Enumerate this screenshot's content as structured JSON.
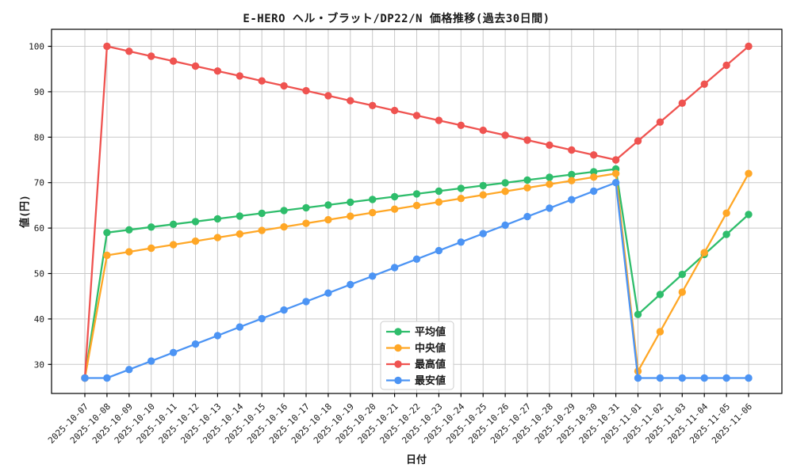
{
  "figure": {
    "title": "E-HERO ヘル・ブラット/DP22/N 価格推移(過去30日間)",
    "xlabel": "日付",
    "ylabel": "値(円)"
  },
  "colors": {
    "background": "#ffffff",
    "grid": "#c8c8c8",
    "axes_edge": "#000000",
    "text": "#1a1a1a",
    "avg_green": "#2ebd6b",
    "median_orange": "#ffa726",
    "max_red": "#ef5350",
    "min_blue": "#4c94f4"
  },
  "chart_data": {
    "type": "line",
    "title": "E-HERO ヘル・ブラット/DP22/N 価格推移(過去30日間)",
    "xlabel": "日付",
    "ylabel": "値(円)",
    "grid": true,
    "yticks": [
      30,
      40,
      50,
      60,
      70,
      80,
      90,
      100
    ],
    "ylim": [
      23.6,
      103.8
    ],
    "xtick_rotation": -45,
    "legend_position": "lower-center",
    "x": [
      "2025-10-07",
      "2025-10-08",
      "2025-10-09",
      "2025-10-10",
      "2025-10-11",
      "2025-10-12",
      "2025-10-13",
      "2025-10-14",
      "2025-10-15",
      "2025-10-16",
      "2025-10-17",
      "2025-10-18",
      "2025-10-19",
      "2025-10-20",
      "2025-10-21",
      "2025-10-22",
      "2025-10-23",
      "2025-10-24",
      "2025-10-25",
      "2025-10-26",
      "2025-10-27",
      "2025-10-28",
      "2025-10-29",
      "2025-10-30",
      "2025-10-31",
      "2025-11-01",
      "2025-11-02",
      "2025-11-03",
      "2025-11-04",
      "2025-11-05",
      "2025-11-06"
    ],
    "series": [
      {
        "name": "平均値",
        "key": "avg",
        "color": "#2ebd6b",
        "values": [
          27,
          59,
          59.61,
          60.22,
          60.83,
          61.43,
          62.04,
          62.65,
          63.26,
          63.87,
          64.48,
          65.09,
          65.7,
          66.3,
          66.91,
          67.52,
          68.13,
          68.74,
          69.35,
          69.96,
          70.57,
          71.17,
          71.78,
          72.39,
          73,
          41,
          45.4,
          49.8,
          54.2,
          58.6,
          63
        ]
      },
      {
        "name": "中央値",
        "key": "median",
        "color": "#ffa726",
        "values": [
          27,
          54,
          54.78,
          55.57,
          56.35,
          57.13,
          57.91,
          58.7,
          59.48,
          60.26,
          61.04,
          61.83,
          62.61,
          63.39,
          64.17,
          64.96,
          65.74,
          66.52,
          67.3,
          68.09,
          68.87,
          69.65,
          70.43,
          71.22,
          72,
          28.5,
          37.2,
          45.9,
          54.6,
          63.3,
          72
        ]
      },
      {
        "name": "最高値",
        "key": "max",
        "color": "#ef5350",
        "values": [
          27,
          100,
          98.91,
          97.83,
          96.74,
          95.65,
          94.57,
          93.48,
          92.39,
          91.3,
          90.22,
          89.13,
          88.04,
          86.96,
          85.87,
          84.78,
          83.7,
          82.61,
          81.52,
          80.43,
          79.35,
          78.26,
          77.17,
          76.09,
          75,
          79.17,
          83.33,
          87.5,
          91.67,
          95.83,
          100
        ]
      },
      {
        "name": "最安値",
        "key": "min",
        "color": "#4c94f4",
        "values": [
          27,
          27,
          28.87,
          30.74,
          32.61,
          34.48,
          36.35,
          38.22,
          40.09,
          41.96,
          43.83,
          45.7,
          47.57,
          49.43,
          51.3,
          53.17,
          55.04,
          56.91,
          58.78,
          60.65,
          62.52,
          64.39,
          66.26,
          68.13,
          70,
          27,
          27,
          27,
          27,
          27,
          27
        ]
      }
    ]
  }
}
